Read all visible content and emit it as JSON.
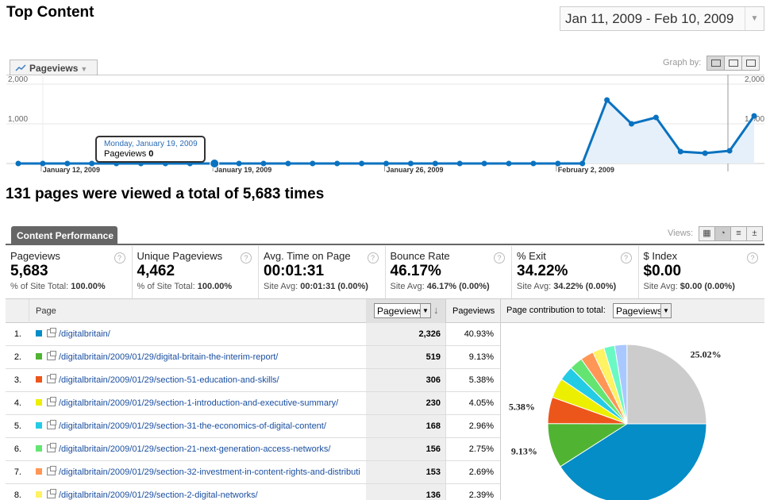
{
  "header": {
    "title": "Top Content",
    "date_range": "Jan 11, 2009 - Feb 10, 2009"
  },
  "graph_controls": {
    "metric_label": "Pageviews",
    "graph_by_label": "Graph by:"
  },
  "chart_data": {
    "type": "area",
    "series": [
      {
        "name": "Pageviews",
        "x": [
          "2009-01-11",
          "2009-01-12",
          "2009-01-13",
          "2009-01-14",
          "2009-01-15",
          "2009-01-16",
          "2009-01-17",
          "2009-01-18",
          "2009-01-19",
          "2009-01-20",
          "2009-01-21",
          "2009-01-22",
          "2009-01-23",
          "2009-01-24",
          "2009-01-25",
          "2009-01-26",
          "2009-01-27",
          "2009-01-28",
          "2009-01-29",
          "2009-01-30",
          "2009-01-31",
          "2009-02-01",
          "2009-02-02",
          "2009-02-03",
          "2009-02-04",
          "2009-02-05",
          "2009-02-06",
          "2009-02-07",
          "2009-02-08",
          "2009-02-09",
          "2009-02-10"
        ],
        "values": [
          0,
          0,
          0,
          0,
          0,
          0,
          0,
          0,
          0,
          0,
          0,
          0,
          0,
          0,
          0,
          0,
          0,
          0,
          0,
          0,
          0,
          0,
          0,
          0,
          1600,
          1000,
          1160,
          300,
          260,
          320,
          1200
        ]
      }
    ],
    "x_tick_labels": [
      "January 12, 2009",
      "January 19, 2009",
      "January 26, 2009",
      "February 2, 2009"
    ],
    "y_tick_labels": [
      "2,000",
      "1,000"
    ],
    "ylim": [
      0,
      2000
    ],
    "grid": true,
    "tooltip": {
      "date": "Monday, January 19, 2009",
      "label": "Pageviews",
      "value": "0"
    }
  },
  "summary": {
    "text": "131 pages were viewed a total of 5,683 times"
  },
  "performance": {
    "tab_label": "Content Performance",
    "views_label": "Views:",
    "metrics": [
      {
        "label": "Pageviews",
        "value": "5,683",
        "sub_prefix": "% of Site Total:",
        "sub_value": "100.00%"
      },
      {
        "label": "Unique Pageviews",
        "value": "4,462",
        "sub_prefix": "% of Site Total:",
        "sub_value": "100.00%"
      },
      {
        "label": "Avg. Time on Page",
        "value": "00:01:31",
        "sub_prefix": "Site Avg:",
        "sub_value": "00:01:31 (0.00%)"
      },
      {
        "label": "Bounce Rate",
        "value": "46.17%",
        "sub_prefix": "Site Avg:",
        "sub_value": "46.17% (0.00%)"
      },
      {
        "label": "% Exit",
        "value": "34.22%",
        "sub_prefix": "Site Avg:",
        "sub_value": "34.22% (0.00%)"
      },
      {
        "label": "$ Index",
        "value": "$0.00",
        "sub_prefix": "Site Avg:",
        "sub_value": "$0.00 (0.00%)"
      }
    ]
  },
  "table": {
    "header_page": "Page",
    "sort_select": "Pageviews",
    "header_pageviews": "Pageviews",
    "contribution_label": "Page contribution to total:",
    "contribution_select": "Pageviews",
    "rows": [
      {
        "idx": "1.",
        "color": "#058dc7",
        "page": "/digitalbritain/",
        "pageviews": "2,326",
        "pct": "40.93%"
      },
      {
        "idx": "2.",
        "color": "#50b432",
        "page": "/digitalbritain/2009/01/29/digital-britain-the-interim-report/",
        "pageviews": "519",
        "pct": "9.13%"
      },
      {
        "idx": "3.",
        "color": "#ed561b",
        "page": "/digitalbritain/2009/01/29/section-51-education-and-skills/",
        "pageviews": "306",
        "pct": "5.38%"
      },
      {
        "idx": "4.",
        "color": "#edef00",
        "page": "/digitalbritain/2009/01/29/section-1-introduction-and-executive-summary/",
        "pageviews": "230",
        "pct": "4.05%"
      },
      {
        "idx": "5.",
        "color": "#24cbe5",
        "page": "/digitalbritain/2009/01/29/section-31-the-economics-of-digital-content/",
        "pageviews": "168",
        "pct": "2.96%"
      },
      {
        "idx": "6.",
        "color": "#64e572",
        "page": "/digitalbritain/2009/01/29/section-21-next-generation-access-networks/",
        "pageviews": "156",
        "pct": "2.75%"
      },
      {
        "idx": "7.",
        "color": "#ff9655",
        "page": "/digitalbritain/2009/01/29/section-32-investment-in-content-rights-and-distributi",
        "pageviews": "153",
        "pct": "2.69%"
      },
      {
        "idx": "8.",
        "color": "#fff263",
        "page": "/digitalbritain/2009/01/29/section-2-digital-networks/",
        "pageviews": "136",
        "pct": "2.39%"
      }
    ]
  },
  "pie": {
    "slices": [
      {
        "value": 40.93,
        "color": "#058dc7"
      },
      {
        "value": 9.13,
        "color": "#50b432",
        "label": "9.13%"
      },
      {
        "value": 5.38,
        "color": "#ed561b",
        "label": "5.38%"
      },
      {
        "value": 4.05,
        "color": "#edef00"
      },
      {
        "value": 2.96,
        "color": "#24cbe5"
      },
      {
        "value": 2.75,
        "color": "#64e572"
      },
      {
        "value": 2.69,
        "color": "#ff9655"
      },
      {
        "value": 2.39,
        "color": "#fff263"
      },
      {
        "value": 2.2,
        "color": "#6af9c4"
      },
      {
        "value": 2.5,
        "color": "#a8c8ff"
      },
      {
        "value": 25.02,
        "color": "#cccccc",
        "label": "25.02%"
      }
    ]
  }
}
